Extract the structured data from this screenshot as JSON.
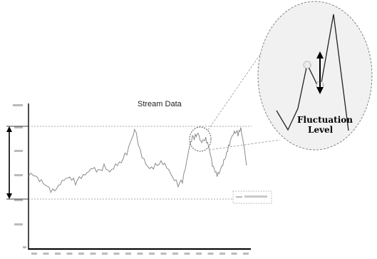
{
  "title": "Stream Data",
  "fluctuation_label_line1": "Fluctuation",
  "fluctuation_label_line2": "Level",
  "colors": {
    "series": "#8a8a8a",
    "axis": "#000000",
    "guide": "#9a9a9a",
    "marker_circle": "#ececec"
  }
}
